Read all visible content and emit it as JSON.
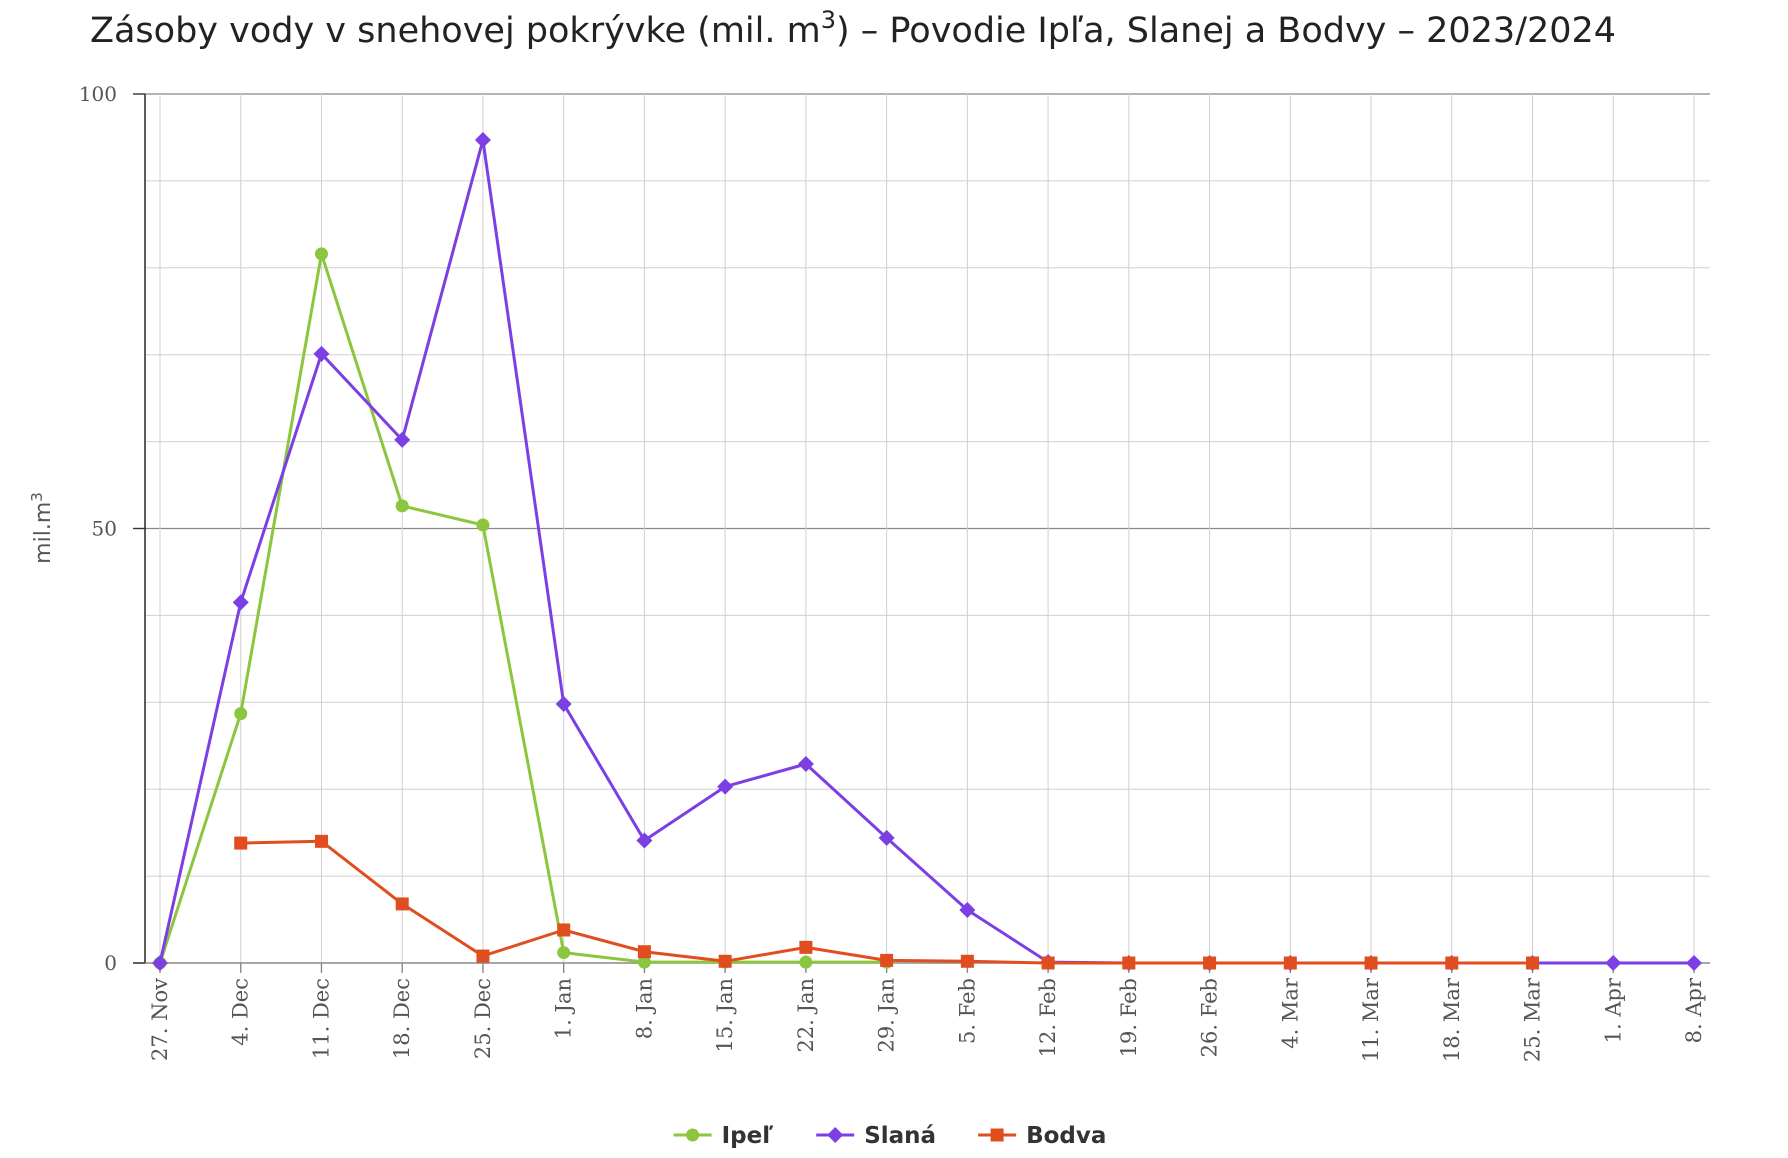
{
  "chart_data": {
    "type": "line",
    "title_prefix": "Zásoby vody v snehovej pokrývke (mil. m",
    "title_sup": "3",
    "title_suffix": ") – Povodie Ipľa, Slanej a Bodvy – 2023/2024",
    "ylabel": "mil.m",
    "ylabel_sup": "3",
    "xlabel": "",
    "ylim": [
      0,
      100
    ],
    "yticks": [
      0,
      50,
      100
    ],
    "grid": true,
    "legend_position": "bottom-center",
    "categories": [
      "27. Nov",
      "4. Dec",
      "11. Dec",
      "18. Dec",
      "25. Dec",
      "1. Jan",
      "8. Jan",
      "15. Jan",
      "22. Jan",
      "29. Jan",
      "5. Feb",
      "12. Feb",
      "19. Feb",
      "26. Feb",
      "4. Mar",
      "11. Mar",
      "18. Mar",
      "25. Mar",
      "1. Apr",
      "8. Apr"
    ],
    "series": [
      {
        "name": "Ipeľ",
        "color": "#8cc63f",
        "marker": "circle",
        "values": [
          0,
          28.7,
          81.6,
          52.6,
          50.4,
          1.2,
          0.1,
          0.1,
          0.1,
          0.1,
          null,
          null,
          null,
          null,
          null,
          null,
          null,
          null,
          null,
          null
        ]
      },
      {
        "name": "Slaná",
        "color": "#7b3fe4",
        "marker": "diamond",
        "values": [
          0,
          41.5,
          70.1,
          60.2,
          94.7,
          29.8,
          14.1,
          20.3,
          22.9,
          14.4,
          6.1,
          0.1,
          0,
          0,
          0,
          0,
          0,
          0,
          0,
          0
        ]
      },
      {
        "name": "Bodva",
        "color": "#e04e1f",
        "marker": "square",
        "values": [
          null,
          13.8,
          14.0,
          6.8,
          0.8,
          3.8,
          1.3,
          0.2,
          1.8,
          0.3,
          0.2,
          0,
          0,
          0,
          0,
          0,
          0,
          0,
          null,
          null
        ]
      }
    ]
  }
}
